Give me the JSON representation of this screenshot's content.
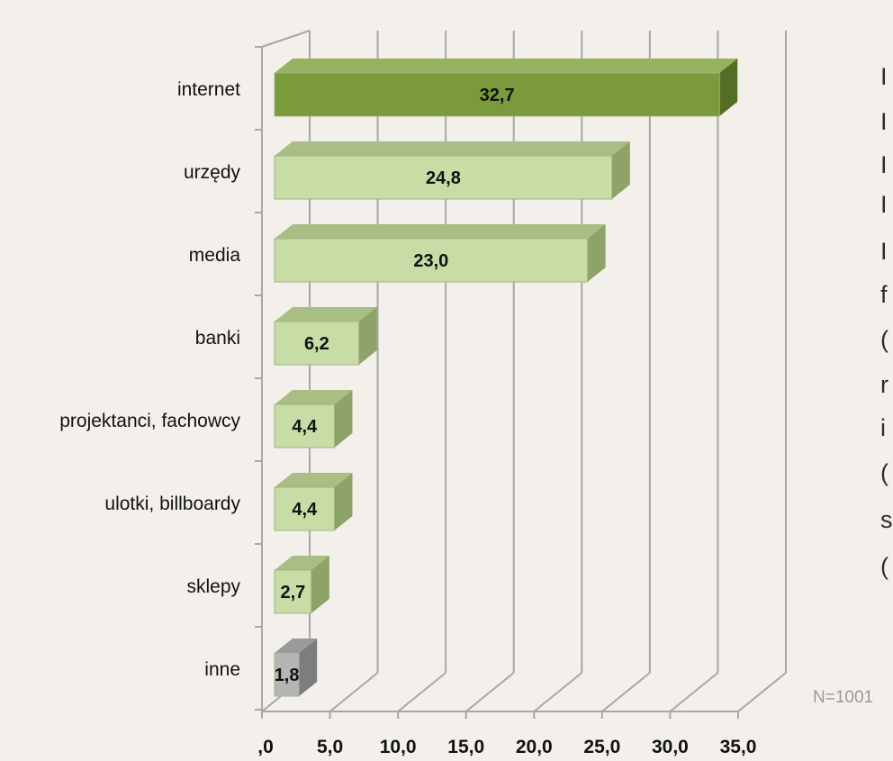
{
  "chart_data": {
    "type": "bar",
    "orientation": "horizontal",
    "three_d": true,
    "categories": [
      "internet",
      "urzędy",
      "media",
      "banki",
      "projektanci, fachowcy",
      "ulotki, billboardy",
      "sklepy",
      "inne"
    ],
    "values": [
      32.7,
      24.8,
      23.0,
      6.2,
      4.4,
      4.4,
      2.7,
      1.8
    ],
    "value_labels": [
      "32,7",
      "24,8",
      "23,0",
      "6,2",
      "4,4",
      "4,4",
      "2,7",
      "1,8"
    ],
    "xlim": [
      0,
      35
    ],
    "ticks": [
      0,
      5,
      10,
      15,
      20,
      25,
      30,
      35
    ],
    "tick_labels": [
      ",0",
      "5,0",
      "10,0",
      "15,0",
      "20,0",
      "25,0",
      "30,0",
      "35,0"
    ],
    "grid": true,
    "title": "",
    "xlabel": "",
    "ylabel": "",
    "colors": {
      "highlight": "#7a9a3c",
      "highlight_top": "#95b35c",
      "highlight_side": "#556e26",
      "regular": "#c8dca6",
      "regular_top": "#a9be85",
      "regular_side": "#8da36a",
      "other": "#b5b5b5",
      "other_top": "#9a9a9a",
      "other_side": "#7d7d7d",
      "gridline": "#a7a7a7",
      "background": "#f3f0ec"
    }
  },
  "annotations": {
    "sample_size": "N=1001",
    "cut_off_text": [
      "I",
      "I",
      "I",
      "I",
      "I",
      "f",
      "(",
      "r",
      "i",
      "(",
      "s",
      "("
    ]
  }
}
